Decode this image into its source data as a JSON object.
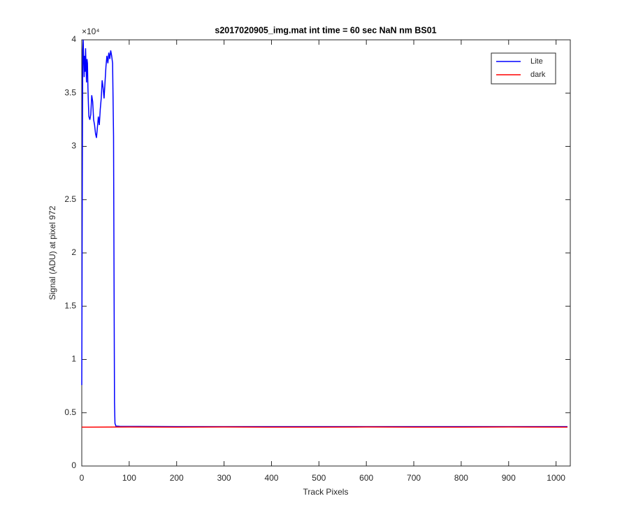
{
  "chart_data": {
    "type": "line",
    "title": "s2017020905_img.mat int time = 60 sec  NaN nm BS01",
    "x_label": "Track Pixels",
    "y_label": "Signal (ADU) at pixel 972",
    "y_exponent_label": "×10⁴",
    "xlim": [
      0,
      1030
    ],
    "ylim": [
      0,
      4
    ],
    "xticks": [
      0,
      100,
      200,
      300,
      400,
      500,
      600,
      700,
      800,
      900,
      1000
    ],
    "yticks": [
      0,
      0.5,
      1,
      1.5,
      2,
      2.5,
      3,
      3.5,
      4
    ],
    "grid": false,
    "legend": "northeast",
    "series": [
      {
        "name": "Lite",
        "color": "#0000ff",
        "x": [
          0,
          1,
          2,
          3,
          4,
          5,
          6,
          7,
          8,
          9,
          10,
          11,
          12,
          13,
          14,
          15,
          17,
          19,
          21,
          23,
          25,
          27,
          29,
          31,
          33,
          35,
          37,
          39,
          41,
          43,
          45,
          47,
          49,
          51,
          53,
          55,
          57,
          59,
          61,
          63,
          65,
          67,
          68,
          69,
          70,
          72,
          80,
          200,
          400,
          600,
          800,
          1024
        ],
        "values": [
          0.76,
          2.5,
          3.9,
          4.0,
          3.8,
          3.65,
          3.85,
          3.7,
          3.92,
          3.75,
          3.6,
          3.82,
          3.78,
          3.55,
          3.4,
          3.28,
          3.25,
          3.3,
          3.48,
          3.42,
          3.25,
          3.2,
          3.12,
          3.08,
          3.18,
          3.28,
          3.2,
          3.35,
          3.45,
          3.62,
          3.55,
          3.45,
          3.6,
          3.75,
          3.85,
          3.78,
          3.88,
          3.82,
          3.9,
          3.85,
          3.78,
          3.1,
          1.8,
          0.6,
          0.4,
          0.375,
          0.372,
          0.37,
          0.37,
          0.37,
          0.37,
          0.37
        ]
      },
      {
        "name": "dark",
        "color": "#ff0000",
        "x": [
          0,
          100,
          200,
          300,
          400,
          500,
          600,
          700,
          800,
          900,
          1024
        ],
        "values": [
          0.365,
          0.366,
          0.365,
          0.366,
          0.365,
          0.365,
          0.366,
          0.365,
          0.365,
          0.366,
          0.365
        ]
      }
    ]
  }
}
